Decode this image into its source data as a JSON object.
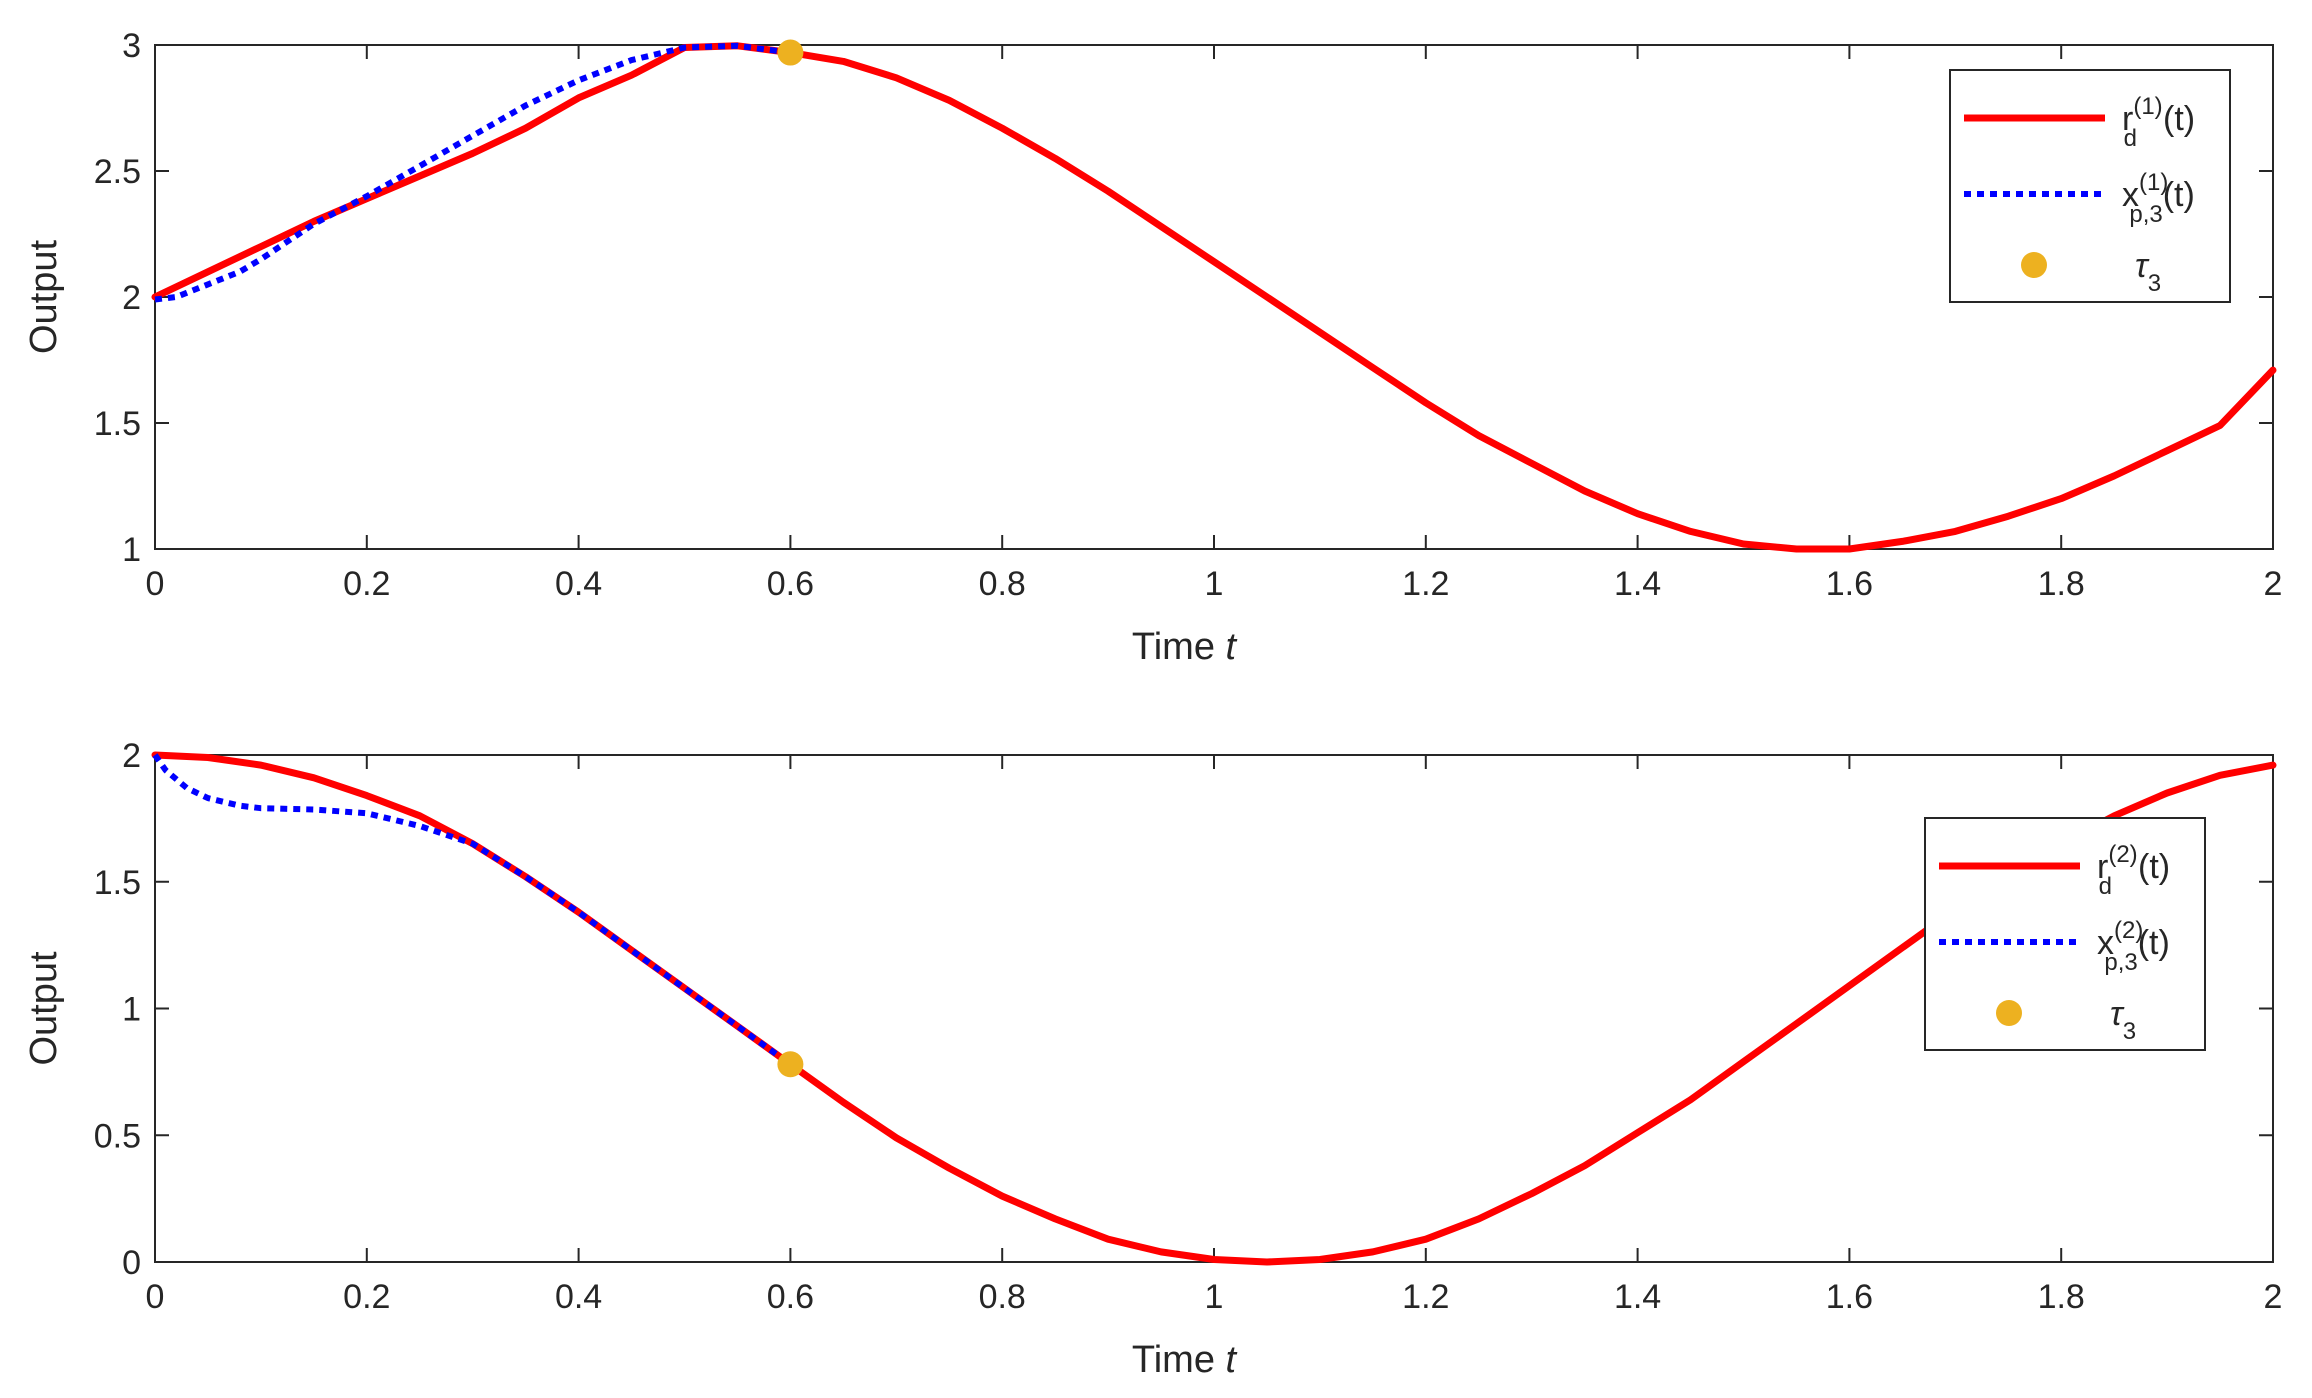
{
  "chart_data": [
    {
      "type": "line",
      "xlabel": "Time",
      "xlabel_var": "t",
      "ylabel": "Output",
      "xlim": [
        0,
        2
      ],
      "ylim": [
        1,
        3
      ],
      "xticks": [
        "0",
        "0.2",
        "0.4",
        "0.6",
        "0.8",
        "1",
        "1.2",
        "1.4",
        "1.6",
        "1.8",
        "2"
      ],
      "yticks": [
        "1",
        "1.5",
        "2",
        "2.5",
        "3"
      ],
      "grid": false,
      "legend_position": "top-right",
      "series": [
        {
          "name": "r_d^(1)(t)",
          "legend": {
            "base": "r",
            "sup": "(1)",
            "sub": "d",
            "tail": "(t)"
          },
          "color": "#ff0000",
          "style": "solid",
          "x": [
            0,
            0.05,
            0.1,
            0.15,
            0.2,
            0.25,
            0.3,
            0.35,
            0.4,
            0.45,
            0.5,
            0.55,
            0.6,
            0.65,
            0.7,
            0.75,
            0.8,
            0.85,
            0.9,
            0.95,
            1.0,
            1.05,
            1.1,
            1.15,
            1.2,
            1.25,
            1.3,
            1.35,
            1.4,
            1.45,
            1.5,
            1.55,
            1.6,
            1.65,
            1.7,
            1.75,
            1.8,
            1.85,
            1.9,
            1.95,
            2.0
          ],
          "y": [
            2.0,
            2.1,
            2.2,
            2.3,
            2.39,
            2.48,
            2.57,
            2.67,
            2.79,
            2.88,
            2.99,
            2.997,
            2.97,
            2.935,
            2.87,
            2.78,
            2.67,
            2.55,
            2.42,
            2.28,
            2.14,
            2.0,
            1.86,
            1.72,
            1.58,
            1.45,
            1.34,
            1.23,
            1.14,
            1.07,
            1.02,
            1.0,
            1.0,
            1.03,
            1.07,
            1.13,
            1.2,
            1.29,
            1.39,
            1.49,
            1.71
          ]
        },
        {
          "name": "x_p,3^(1)(t)",
          "legend": {
            "base": "x",
            "sup": "(1)",
            "sub": "p,3",
            "tail": "(t)"
          },
          "color": "#0000ff",
          "style": "dotted",
          "x": [
            0,
            0.02,
            0.05,
            0.08,
            0.1,
            0.15,
            0.2,
            0.25,
            0.3,
            0.35,
            0.4,
            0.45,
            0.5,
            0.55,
            0.6
          ],
          "y": [
            1.99,
            2.0,
            2.05,
            2.1,
            2.15,
            2.29,
            2.4,
            2.52,
            2.64,
            2.76,
            2.86,
            2.94,
            2.99,
            2.997,
            2.97
          ]
        }
      ],
      "markers": [
        {
          "name": "τ_3",
          "legend": {
            "base": "τ",
            "sub": "3"
          },
          "x": 0.6,
          "y": 2.97,
          "color": "#edb120"
        }
      ]
    },
    {
      "type": "line",
      "xlabel": "Time",
      "xlabel_var": "t",
      "ylabel": "Output",
      "xlim": [
        0,
        2
      ],
      "ylim": [
        0,
        2
      ],
      "xticks": [
        "0",
        "0.2",
        "0.4",
        "0.6",
        "0.8",
        "1",
        "1.2",
        "1.4",
        "1.6",
        "1.8",
        "2"
      ],
      "yticks": [
        "0",
        "0.5",
        "1",
        "1.5",
        "2"
      ],
      "grid": false,
      "legend_position": "right",
      "series": [
        {
          "name": "r_d^(2)(t)",
          "legend": {
            "base": "r",
            "sup": "(2)",
            "sub": "d",
            "tail": "(t)"
          },
          "color": "#ff0000",
          "style": "solid",
          "x": [
            0,
            0.05,
            0.1,
            0.15,
            0.2,
            0.25,
            0.3,
            0.35,
            0.4,
            0.45,
            0.5,
            0.55,
            0.6,
            0.65,
            0.7,
            0.75,
            0.8,
            0.85,
            0.9,
            0.95,
            1.0,
            1.05,
            1.1,
            1.15,
            1.2,
            1.25,
            1.3,
            1.35,
            1.4,
            1.45,
            1.5,
            1.55,
            1.6,
            1.65,
            1.7,
            1.75,
            1.8,
            1.85,
            1.9,
            1.95,
            2.0
          ],
          "y": [
            2.0,
            1.99,
            1.96,
            1.91,
            1.84,
            1.76,
            1.65,
            1.52,
            1.38,
            1.23,
            1.08,
            0.93,
            0.78,
            0.63,
            0.49,
            0.37,
            0.26,
            0.17,
            0.09,
            0.04,
            0.01,
            0.0,
            0.01,
            0.04,
            0.09,
            0.17,
            0.27,
            0.38,
            0.51,
            0.64,
            0.79,
            0.94,
            1.09,
            1.24,
            1.39,
            1.52,
            1.65,
            1.76,
            1.85,
            1.92,
            1.96
          ]
        },
        {
          "name": "x_p,3^(2)(t)",
          "legend": {
            "base": "x",
            "sup": "(2)",
            "sub": "p,3",
            "tail": "(t)"
          },
          "color": "#0000ff",
          "style": "dotted",
          "x": [
            0,
            0.01,
            0.03,
            0.05,
            0.08,
            0.1,
            0.15,
            0.2,
            0.25,
            0.3,
            0.35,
            0.4,
            0.45,
            0.5,
            0.55,
            0.6
          ],
          "y": [
            2.0,
            1.94,
            1.87,
            1.83,
            1.8,
            1.79,
            1.785,
            1.77,
            1.72,
            1.65,
            1.52,
            1.38,
            1.23,
            1.08,
            0.93,
            0.78
          ]
        }
      ],
      "markers": [
        {
          "name": "τ_3",
          "legend": {
            "base": "τ",
            "sub": "3"
          },
          "x": 0.6,
          "y": 0.78,
          "color": "#edb120"
        }
      ]
    }
  ]
}
